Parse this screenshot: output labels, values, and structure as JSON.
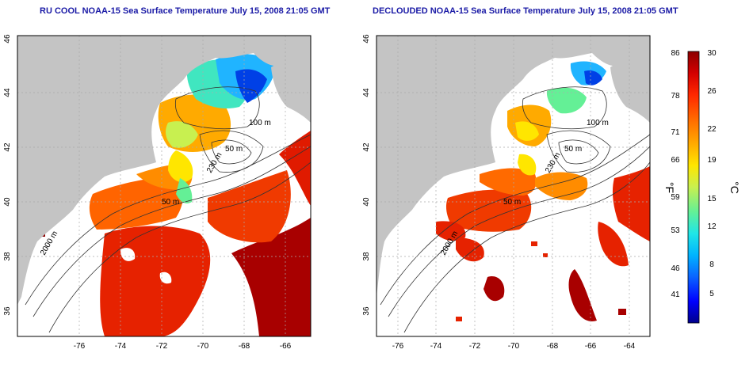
{
  "panels": [
    {
      "title": "RU COOL NOAA-15 Sea Surface Temperature July 15, 2008 21:05 GMT",
      "variant": "cool"
    },
    {
      "title": "DECLOUDED NOAA-15 Sea Surface Temperature July 15, 2008 21:05 GMT",
      "variant": "declouded"
    }
  ],
  "axes": {
    "x_ticks": [
      "-76",
      "-74",
      "-72",
      "-70",
      "-68",
      "-66",
      "-64"
    ],
    "y_ticks": [
      "36",
      "38",
      "40",
      "42",
      "44",
      "46"
    ],
    "x_range": [
      -77.2,
      -63.0
    ],
    "y_range": [
      35.0,
      46.0
    ]
  },
  "contour_labels": [
    "100 m",
    "100 m",
    "50 m",
    "230 m",
    "50 m",
    "2000 m"
  ],
  "colorbar": {
    "fahrenheit_ticks": [
      "86",
      "78",
      "71",
      "66",
      "59",
      "53",
      "46",
      "41"
    ],
    "celsius_ticks": [
      "30",
      "26",
      "22",
      "19",
      "15",
      "12",
      "8",
      "5"
    ],
    "f_unit": "°F",
    "c_unit": "°C",
    "colors": [
      "#00008b",
      "#0000ff",
      "#0a64ff",
      "#00b4ff",
      "#20e6e6",
      "#64f096",
      "#c8f050",
      "#ffe600",
      "#ffaa00",
      "#ff6a00",
      "#ff2800",
      "#d40000",
      "#8b0000"
    ]
  },
  "colors": {
    "land": "#c4c4c4",
    "no_data": "#ffffff",
    "title": "#1a1aa6"
  }
}
